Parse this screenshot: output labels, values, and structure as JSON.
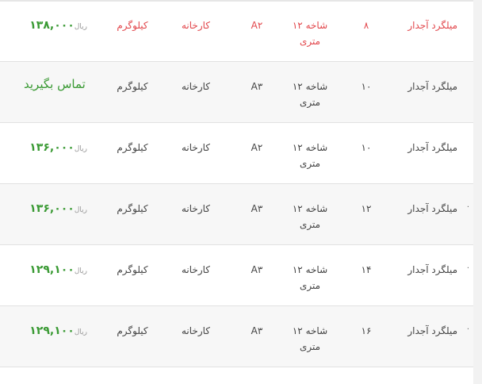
{
  "currency": "ریال",
  "rows": [
    {
      "name": "میلگرد آجدار",
      "size": "۸",
      "branch": "شاخه ۱۲ متری",
      "grade": "A۲",
      "place": "کارخانه",
      "unit": "کیلوگرم",
      "price": "۱۳۸,۰۰۰",
      "highlight": true
    },
    {
      "name": "میلگرد آجدار",
      "size": "۱۰",
      "branch": "شاخه ۱۲ متری",
      "grade": "A۳",
      "place": "کارخانه",
      "unit": "کیلوگرم",
      "contact": "تماس بگیرید"
    },
    {
      "name": "میلگرد آجدار",
      "size": "۱۰",
      "branch": "شاخه ۱۲ متری",
      "grade": "A۲",
      "place": "کارخانه",
      "unit": "کیلوگرم",
      "price": "۱۳۶,۰۰۰"
    },
    {
      "name": "میلگرد آجدار",
      "size": "۱۲",
      "branch": "شاخه ۱۲ متری",
      "grade": "A۳",
      "place": "کارخانه",
      "unit": "کیلوگرم",
      "price": "۱۳۶,۰۰۰"
    },
    {
      "name": "میلگرد آجدار",
      "size": "۱۴",
      "branch": "شاخه ۱۲ متری",
      "grade": "A۳",
      "place": "کارخانه",
      "unit": "کیلوگرم",
      "price": "۱۲۹,۱۰۰"
    },
    {
      "name": "میلگرد آجدار",
      "size": "۱۶",
      "branch": "شاخه ۱۲ متری",
      "grade": "A۳",
      "place": "کارخانه",
      "unit": "کیلوگرم",
      "price": "۱۲۹,۱۰۰"
    }
  ],
  "colors": {
    "highlight": "#e2474c",
    "price": "#3a9a34"
  }
}
